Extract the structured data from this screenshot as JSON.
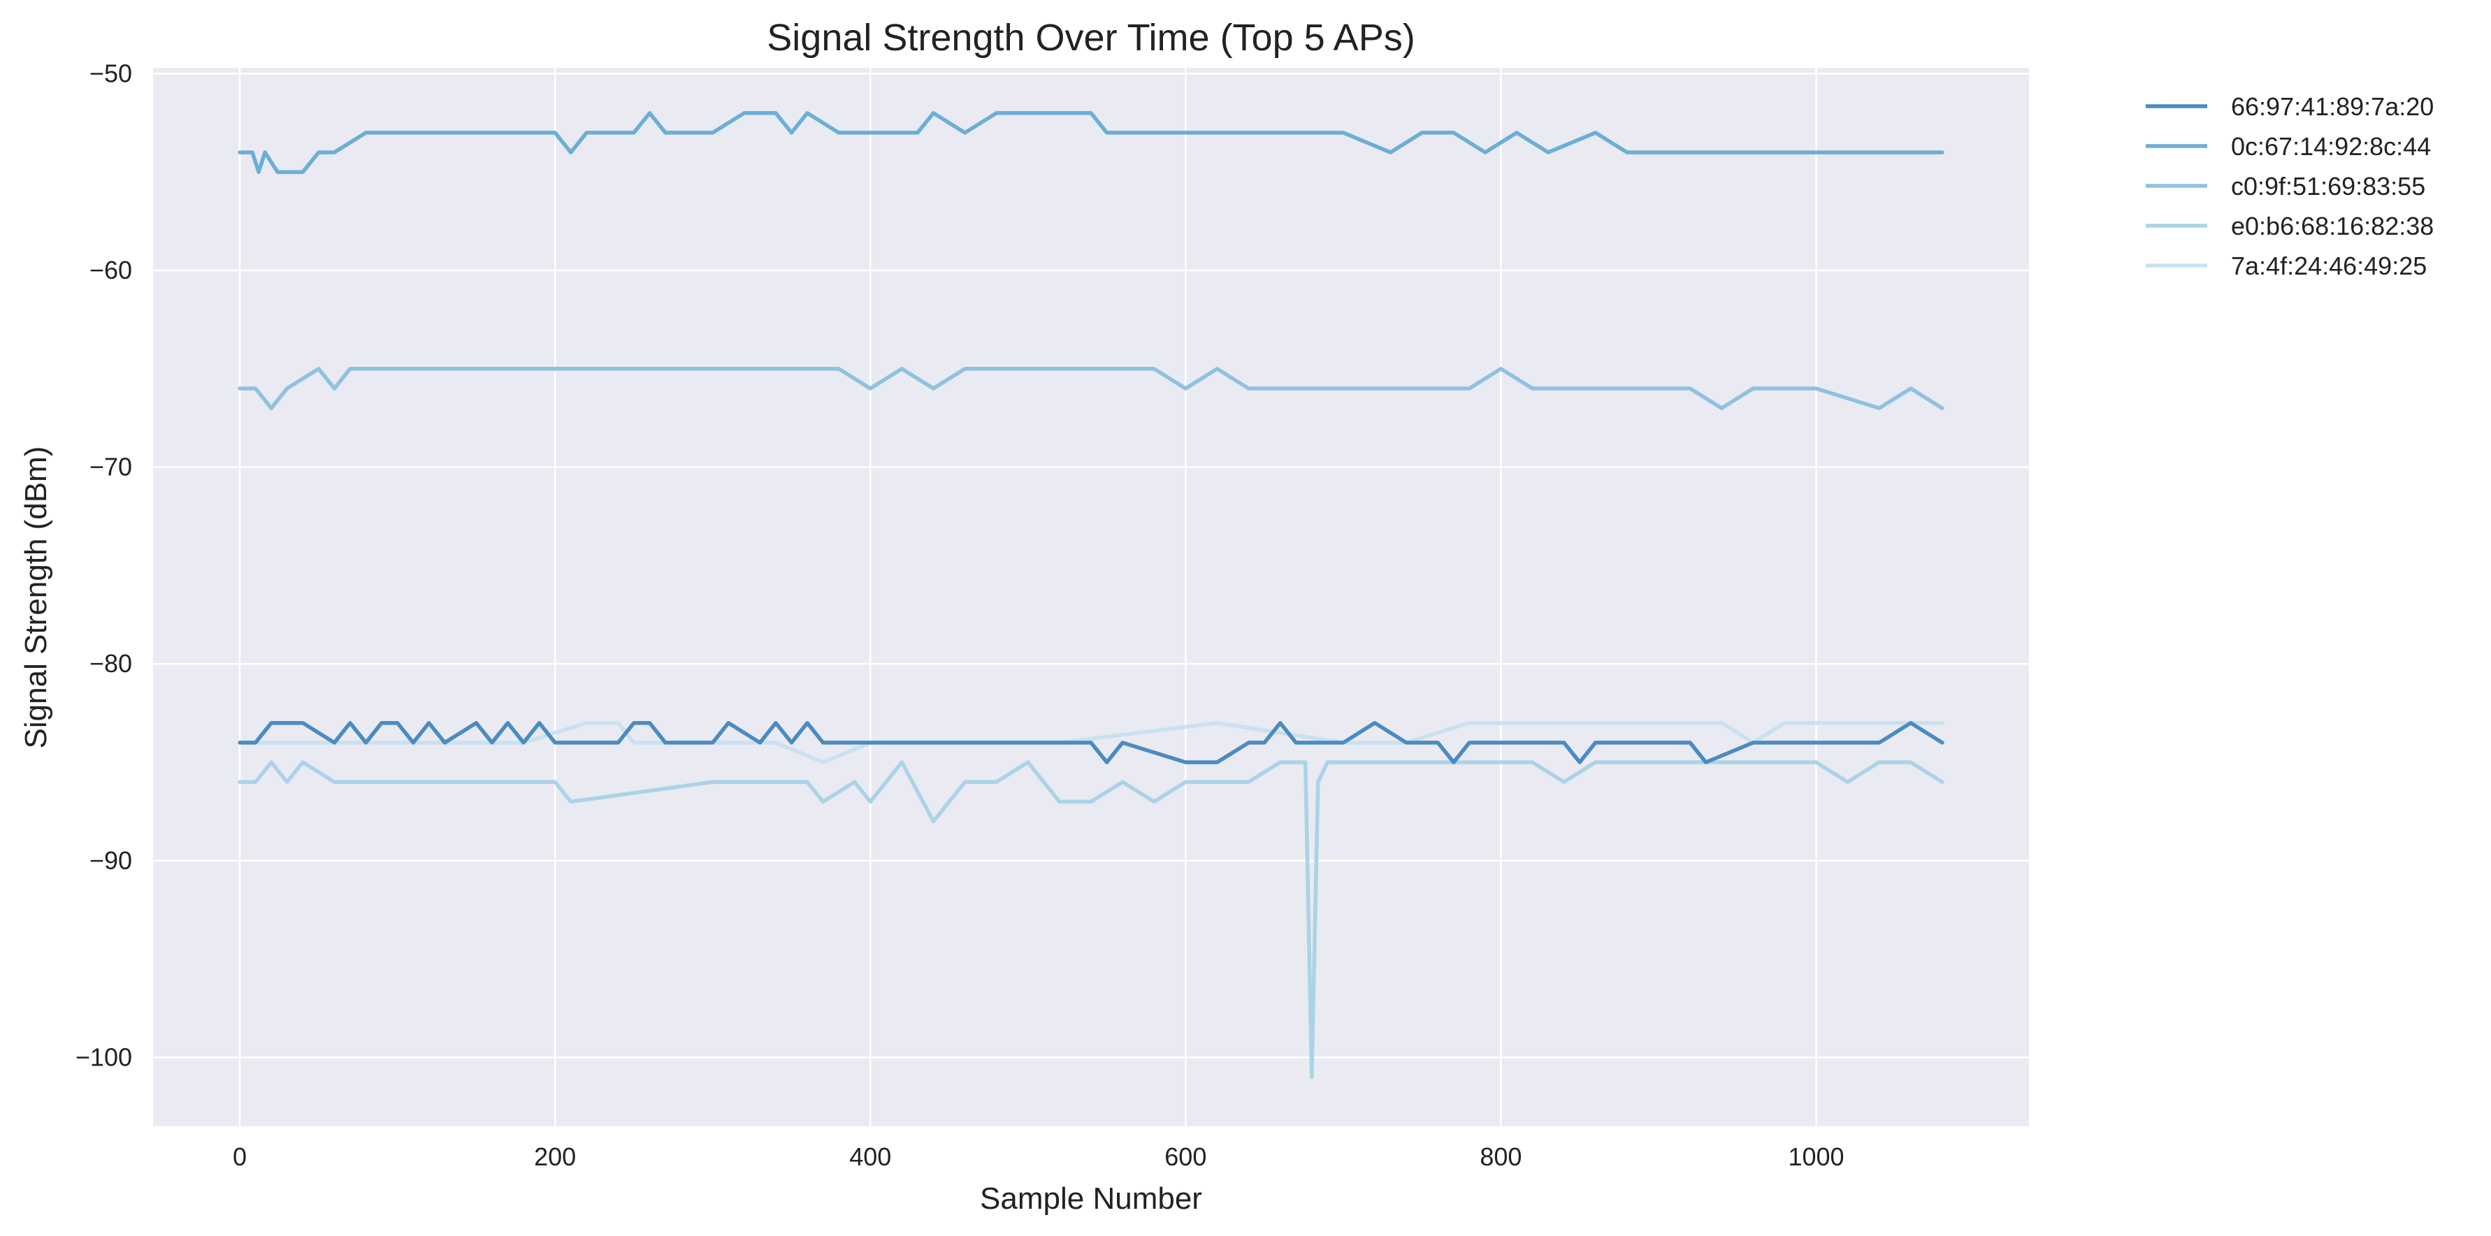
{
  "chart_data": {
    "type": "line",
    "title": "Signal Strength Over Time (Top 5 APs)",
    "xlabel": "Sample Number",
    "ylabel": "Signal Strength (dBm)",
    "xlim": [
      -55,
      1135
    ],
    "ylim": [
      -103.5,
      -49.7
    ],
    "x_ticks": [
      0,
      200,
      400,
      600,
      800,
      1000
    ],
    "x_tick_labels": [
      "0",
      "200",
      "400",
      "600",
      "800",
      "1000"
    ],
    "y_ticks": [
      -50,
      -60,
      -70,
      -80,
      -90,
      -100
    ],
    "y_tick_labels": [
      "−50",
      "−60",
      "−70",
      "−80",
      "−90",
      "−100"
    ],
    "grid": true,
    "legend_position": "outside-top-right",
    "plot_background": "#EAEAF2",
    "grid_color": "#FFFFFF",
    "series": [
      {
        "name": "66:97:41:89:7a:20",
        "color": "#4A8BC2",
        "x": [
          0,
          10,
          20,
          40,
          60,
          70,
          80,
          90,
          100,
          110,
          120,
          130,
          150,
          160,
          170,
          180,
          190,
          200,
          210,
          240,
          250,
          260,
          270,
          300,
          310,
          330,
          340,
          350,
          360,
          370,
          380,
          400,
          500,
          540,
          550,
          560,
          600,
          620,
          640,
          650,
          660,
          670,
          680,
          690,
          700,
          720,
          740,
          760,
          770,
          780,
          800,
          820,
          840,
          850,
          860,
          900,
          920,
          930,
          960,
          980,
          1000,
          1040,
          1060,
          1080
        ],
        "values": [
          -84,
          -84,
          -83,
          -83,
          -84,
          -83,
          -84,
          -83,
          -83,
          -84,
          -83,
          -84,
          -83,
          -84,
          -83,
          -84,
          -83,
          -84,
          -84,
          -84,
          -83,
          -83,
          -84,
          -84,
          -83,
          -84,
          -83,
          -84,
          -83,
          -84,
          -84,
          -84,
          -84,
          -84,
          -85,
          -84,
          -85,
          -85,
          -84,
          -84,
          -83,
          -84,
          -84,
          -84,
          -84,
          -83,
          -84,
          -84,
          -85,
          -84,
          -84,
          -84,
          -84,
          -85,
          -84,
          -84,
          -84,
          -85,
          -84,
          -84,
          -84,
          -84,
          -83,
          -84
        ]
      },
      {
        "name": "0c:67:14:92:8c:44",
        "color": "#6BAED6",
        "x": [
          0,
          8,
          12,
          16,
          24,
          40,
          50,
          60,
          80,
          90,
          100,
          200,
          210,
          220,
          250,
          260,
          270,
          300,
          320,
          340,
          350,
          360,
          380,
          400,
          430,
          440,
          460,
          480,
          500,
          540,
          550,
          570,
          600,
          620,
          630,
          700,
          730,
          750,
          770,
          790,
          810,
          830,
          860,
          880,
          920,
          1000,
          1040,
          1060,
          1080
        ],
        "values": [
          -54,
          -54,
          -55,
          -54,
          -55,
          -55,
          -54,
          -54,
          -53,
          -53,
          -53,
          -53,
          -54,
          -53,
          -53,
          -52,
          -53,
          -53,
          -52,
          -52,
          -53,
          -52,
          -53,
          -53,
          -53,
          -52,
          -53,
          -52,
          -52,
          -52,
          -53,
          -53,
          -53,
          -53,
          -53,
          -53,
          -54,
          -53,
          -53,
          -54,
          -53,
          -54,
          -53,
          -54,
          -54,
          -54,
          -54,
          -54,
          -54
        ]
      },
      {
        "name": "c0:9f:51:69:83:55",
        "color": "#8FC1E0",
        "x": [
          0,
          10,
          20,
          30,
          50,
          60,
          70,
          100,
          200,
          220,
          300,
          380,
          400,
          420,
          440,
          460,
          500,
          580,
          600,
          620,
          640,
          680,
          700,
          720,
          740,
          760,
          780,
          800,
          820,
          860,
          920,
          940,
          960,
          1000,
          1040,
          1060,
          1080
        ],
        "values": [
          -66,
          -66,
          -67,
          -66,
          -65,
          -66,
          -65,
          -65,
          -65,
          -65,
          -65,
          -65,
          -66,
          -65,
          -66,
          -65,
          -65,
          -65,
          -66,
          -65,
          -66,
          -66,
          -66,
          -66,
          -66,
          -66,
          -66,
          -65,
          -66,
          -66,
          -66,
          -67,
          -66,
          -66,
          -67,
          -66,
          -67
        ]
      },
      {
        "name": "e0:b6:68:16:82:38",
        "color": "#ABD3E8",
        "x": [
          0,
          10,
          20,
          30,
          40,
          60,
          70,
          100,
          200,
          210,
          300,
          360,
          370,
          390,
          400,
          410,
          420,
          440,
          450,
          460,
          480,
          500,
          520,
          540,
          560,
          580,
          600,
          620,
          640,
          660,
          676,
          680,
          684,
          690,
          700,
          720,
          740,
          760,
          800,
          820,
          840,
          860,
          900,
          940,
          960,
          1000,
          1020,
          1040,
          1060,
          1080
        ],
        "values": [
          -86,
          -86,
          -85,
          -86,
          -85,
          -86,
          -86,
          -86,
          -86,
          -87,
          -86,
          -86,
          -87,
          -86,
          -87,
          -86,
          -85,
          -88,
          -87,
          -86,
          -86,
          -85,
          -87,
          -87,
          -86,
          -87,
          -86,
          -86,
          -86,
          -85,
          -85,
          -101,
          -86,
          -85,
          -85,
          -85,
          -85,
          -85,
          -85,
          -85,
          -86,
          -85,
          -85,
          -85,
          -85,
          -85,
          -86,
          -85,
          -85,
          -86
        ]
      },
      {
        "name": "7a:4f:24:46:49:25",
        "color": "#C9E1F0",
        "x": [
          0,
          80,
          180,
          200,
          220,
          240,
          250,
          300,
          340,
          370,
          400,
          520,
          620,
          700,
          740,
          780,
          800,
          900,
          940,
          960,
          980,
          1000,
          1040,
          1060,
          1080
        ],
        "values": [
          -84,
          -84,
          -84,
          -83.5,
          -83,
          -83,
          -84,
          -84,
          -84,
          -85,
          -84,
          -84,
          -83,
          -84,
          -84,
          -83,
          -83,
          -83,
          -83,
          -84,
          -83,
          -83,
          -83,
          -83,
          -83
        ]
      }
    ]
  }
}
